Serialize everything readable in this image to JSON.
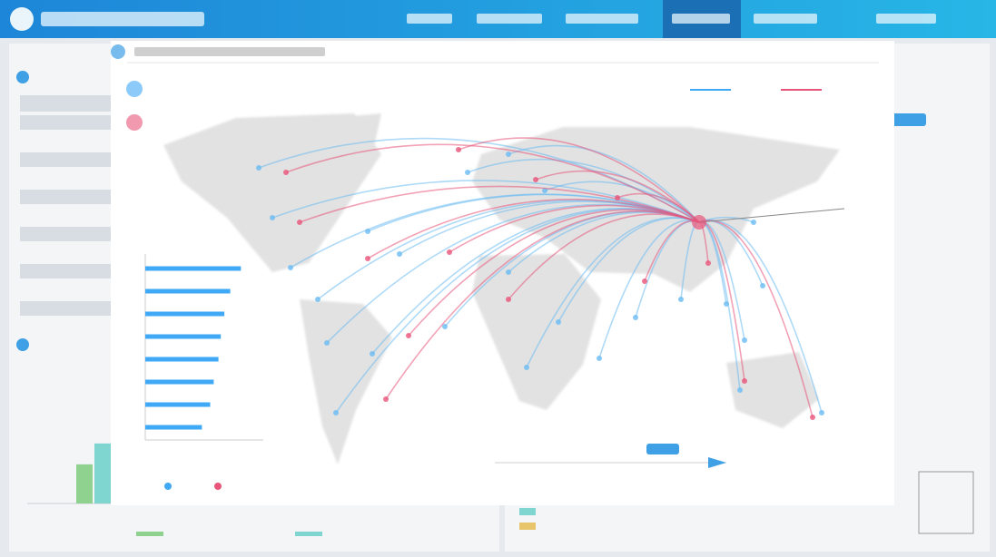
{
  "modal_chart": {
    "type": "bar",
    "orientation": "horizontal",
    "values": [
      81,
      72,
      67,
      64,
      62,
      58,
      55,
      48
    ],
    "color": "#3fa9f5",
    "xlim": [
      0,
      100
    ]
  },
  "background_chart": {
    "type": "bar",
    "values": [
      1.5,
      2.3
    ],
    "colors": [
      "#8fd18f",
      "#7fd6d0"
    ],
    "ylim": [
      0,
      4
    ]
  }
}
